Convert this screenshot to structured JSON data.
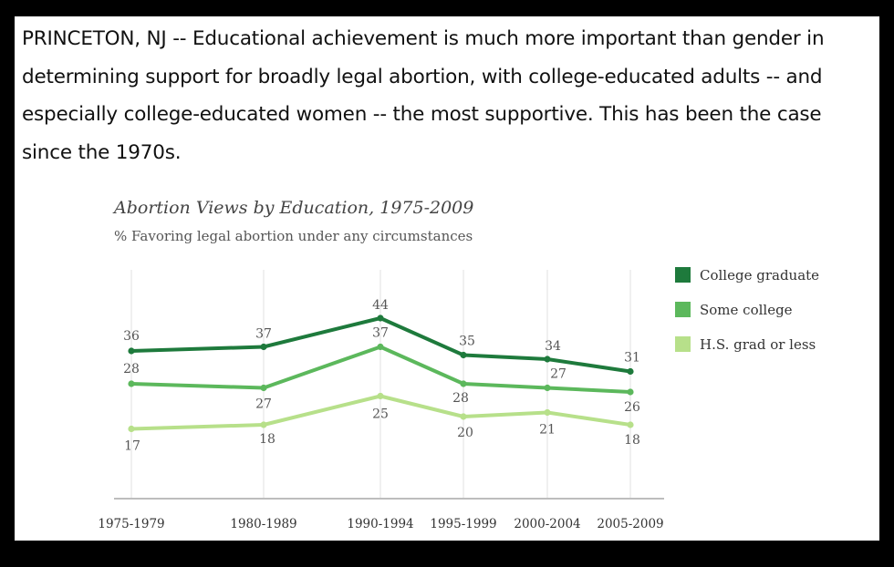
{
  "intro_text": "PRINCETON, NJ -- Educational achievement is much more important than gender in determining support for broadly legal abortion, with college-educated adults -- and especially college-educated women -- the most supportive. This has been the case since the 1970s.",
  "chart_data": {
    "type": "line",
    "title": "Abortion Views by Education, 1975-2009",
    "subtitle": "% Favoring legal abortion under any circumstances",
    "categories": [
      "1975-1979",
      "1980-1989",
      "1990-1994",
      "1995-1999",
      "2000-2004",
      "2005-2009"
    ],
    "series": [
      {
        "name": "College graduate",
        "color": "#1e7a3c",
        "values": [
          36,
          37,
          44,
          35,
          34,
          31
        ]
      },
      {
        "name": "Some college",
        "color": "#5cb85c",
        "values": [
          28,
          27,
          37,
          28,
          27,
          26
        ]
      },
      {
        "name": "H.S. grad or less",
        "color": "#b7e08a",
        "values": [
          17,
          18,
          25,
          20,
          21,
          18
        ]
      }
    ],
    "ylim": [
      0,
      50
    ],
    "grid": "vertical",
    "legend_position": "right"
  }
}
